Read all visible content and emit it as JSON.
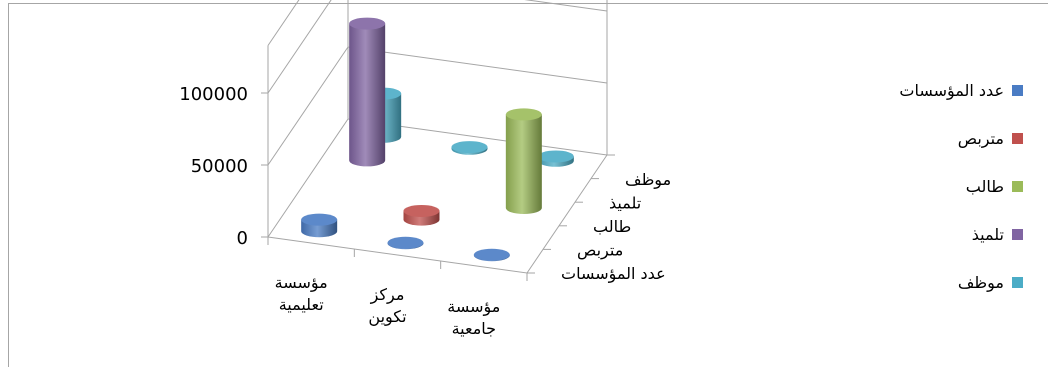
{
  "chart_data": {
    "type": "bar",
    "subtype": "3d-cylinder",
    "title": "",
    "xlabel": "",
    "ylabel": "",
    "ylim": [
      0,
      100000
    ],
    "y_ticks": [
      "0",
      "50000",
      "100000"
    ],
    "categories": [
      [
        "مؤسسة",
        "تعليمية"
      ],
      [
        "مركز",
        "تكوين"
      ],
      [
        "مؤسسة",
        "جامعية"
      ]
    ],
    "depth_labels": [
      "عدد المؤسسات",
      "متربص",
      "طالب",
      "تلميذ",
      "موظف"
    ],
    "series": [
      {
        "name": "عدد المؤسسات",
        "color": "#4a7cc4",
        "values": [
          8000,
          300,
          300
        ]
      },
      {
        "name": "متربص",
        "color": "#c0504d",
        "values": [
          0,
          6000,
          0
        ]
      },
      {
        "name": "طالب",
        "color": "#9bbb59",
        "values": [
          0,
          0,
          65000
        ]
      },
      {
        "name": "تلميذ",
        "color": "#8064a2",
        "values": [
          95000,
          0,
          0
        ]
      },
      {
        "name": "موظف",
        "color": "#4bacc6",
        "values": [
          30000,
          1200,
          3000
        ]
      }
    ],
    "legend_position": "right",
    "grid": true
  }
}
